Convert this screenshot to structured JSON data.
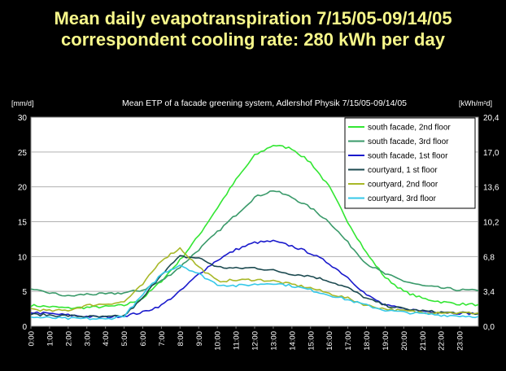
{
  "slide": {
    "title_line1": "Mean daily evapotranspiration 7/15/05-09/14/05",
    "title_line2": "correspondent cooling rate: 280 kWh per day"
  },
  "chart_data": {
    "type": "line",
    "title": "Mean ETP of a facade greening system, Adlershof Physik 7/15/05-09/14/05",
    "ylabel_left": "[mm/d]",
    "ylabel_right": "[kWh/m²d]",
    "ylim": [
      0,
      30
    ],
    "yticks_left": [
      "0",
      "5",
      "10",
      "15",
      "20",
      "25",
      "30"
    ],
    "ylim_right": [
      0,
      20.4
    ],
    "yticks_right": [
      "0,0",
      "3,4",
      "6,8",
      "10,2",
      "13,6",
      "17,0",
      "20,4"
    ],
    "x": [
      "0:00",
      "1:00",
      "2:00",
      "3:00",
      "4:00",
      "5:00",
      "6:00",
      "7:00",
      "8:00",
      "9:00",
      "10:00",
      "11:00",
      "12:00",
      "13:00",
      "14:00",
      "15:00",
      "16:00",
      "17:00",
      "18:00",
      "19:00",
      "20:00",
      "21:00",
      "22:00",
      "23:00"
    ],
    "xlim": [
      0,
      24
    ],
    "legend_position": "top-right",
    "grid": true,
    "series": [
      {
        "name": "south facade, 2nd floor",
        "color": "#33e633",
        "x": [
          0,
          1,
          2,
          3,
          4,
          5,
          6,
          7,
          8,
          9,
          10,
          11,
          12,
          13,
          14,
          15,
          16,
          17,
          18,
          19,
          20,
          21,
          22,
          23,
          24
        ],
        "values": [
          3.0,
          2.8,
          2.6,
          2.7,
          2.8,
          3.0,
          4.0,
          6.5,
          9.5,
          13.0,
          17.0,
          21.0,
          24.5,
          26.0,
          25.5,
          23.5,
          20.0,
          15.0,
          10.5,
          7.0,
          5.0,
          4.0,
          3.5,
          3.2,
          3.1
        ]
      },
      {
        "name": "south facade, 3rd floor",
        "color": "#3a9a6a",
        "x": [
          0,
          1,
          2,
          3,
          4,
          5,
          6,
          7,
          8,
          9,
          10,
          11,
          12,
          13,
          14,
          15,
          16,
          17,
          18,
          19,
          20,
          21,
          22,
          23,
          24
        ],
        "values": [
          5.2,
          4.8,
          4.3,
          4.6,
          4.6,
          4.8,
          5.2,
          6.5,
          8.5,
          11.0,
          13.5,
          16.0,
          18.5,
          19.5,
          18.5,
          17.0,
          15.0,
          12.0,
          9.0,
          7.5,
          6.5,
          5.8,
          5.5,
          5.2,
          5.1
        ]
      },
      {
        "name": "south facade, 1st floor",
        "color": "#1a1acc",
        "x": [
          0,
          1,
          2,
          3,
          4,
          5,
          6,
          7,
          8,
          9,
          10,
          11,
          12,
          13,
          14,
          15,
          16,
          17,
          18,
          19,
          20,
          21,
          22,
          23,
          24
        ],
        "values": [
          2.0,
          1.8,
          1.6,
          1.4,
          1.3,
          1.5,
          2.0,
          3.0,
          5.0,
          7.5,
          9.5,
          11.0,
          12.0,
          12.2,
          11.5,
          10.5,
          9.0,
          7.0,
          4.5,
          3.0,
          2.5,
          2.2,
          2.0,
          1.9,
          1.8
        ]
      },
      {
        "name": "courtyard, 1 st floor",
        "color": "#1c4a50",
        "x": [
          0,
          1,
          2,
          3,
          4,
          5,
          6,
          7,
          8,
          9,
          10,
          11,
          12,
          13,
          14,
          15,
          16,
          17,
          18,
          19,
          20,
          21,
          22,
          23,
          24
        ],
        "values": [
          1.7,
          1.6,
          1.5,
          1.4,
          1.3,
          1.5,
          4.0,
          7.5,
          10.0,
          9.8,
          8.5,
          8.3,
          8.4,
          8.0,
          7.5,
          7.2,
          6.5,
          5.5,
          4.0,
          3.0,
          2.5,
          2.2,
          2.0,
          1.9,
          1.8
        ]
      },
      {
        "name": "courtyard, 2nd floor",
        "color": "#a8b828",
        "x": [
          0,
          1,
          2,
          3,
          4,
          5,
          6,
          7,
          8,
          9,
          10,
          11,
          12,
          13,
          14,
          15,
          16,
          17,
          18,
          19,
          20,
          21,
          22,
          23,
          24
        ],
        "values": [
          2.5,
          2.2,
          2.3,
          3.0,
          3.2,
          3.5,
          6.0,
          9.5,
          11.2,
          8.5,
          6.5,
          6.6,
          6.7,
          6.5,
          6.0,
          5.5,
          4.7,
          4.0,
          3.0,
          2.5,
          2.2,
          2.0,
          2.0,
          1.9,
          1.9
        ]
      },
      {
        "name": "courtyard, 3rd floor",
        "color": "#35c8e8",
        "x": [
          0,
          1,
          2,
          3,
          4,
          5,
          6,
          7,
          8,
          9,
          10,
          11,
          12,
          13,
          14,
          15,
          16,
          17,
          18,
          19,
          20,
          21,
          22,
          23,
          24
        ],
        "values": [
          1.3,
          1.2,
          1.1,
          1.1,
          1.0,
          1.5,
          4.5,
          7.5,
          8.8,
          7.5,
          6.0,
          5.8,
          6.0,
          6.2,
          5.8,
          5.2,
          4.5,
          3.8,
          3.0,
          2.3,
          2.0,
          1.8,
          1.6,
          1.5,
          1.4
        ]
      }
    ]
  }
}
